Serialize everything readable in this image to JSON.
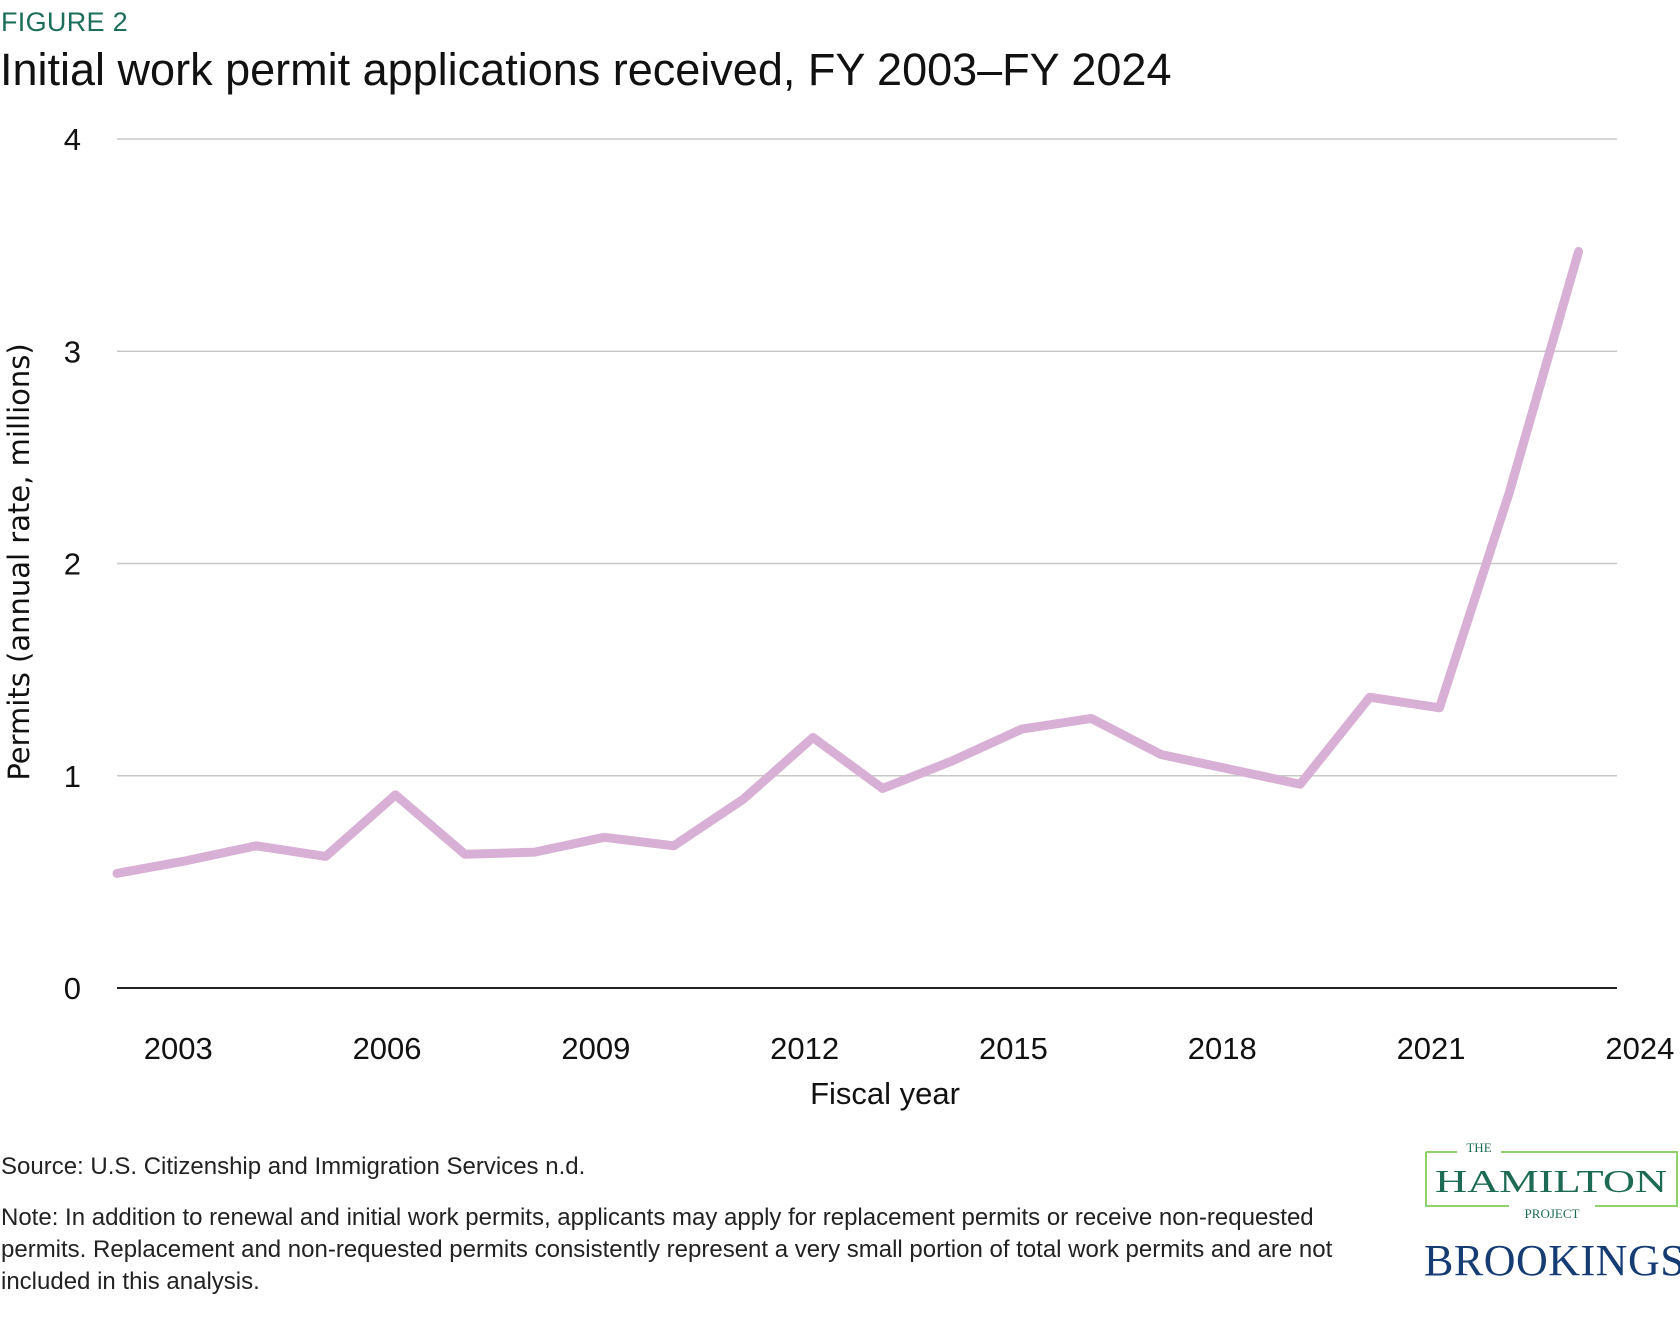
{
  "figure_label": "FIGURE 2",
  "title": "Initial work permit applications received, FY 2003–FY 2024",
  "source": "Source: U.S. Citizenship and Immigration Services n.d.",
  "note": "Note: In addition to renewal and initial work permits, applicants may apply for replacement permits or receive non-requested permits. Replacement and non-requested permits consistently represent a very small portion of total work permits and are not included in this analysis.",
  "logos": {
    "hamilton_the": "THE",
    "hamilton_name": "HAMILTON",
    "hamilton_project": "PROJECT",
    "brookings": "BROOKINGS"
  },
  "chart_data": {
    "type": "line",
    "title": "Initial work permit applications received, FY 2003–FY 2024",
    "xlabel": "Fiscal year",
    "ylabel": "Permits (annual rate, millions)",
    "ylim": [
      0,
      4
    ],
    "yticks": [
      "0",
      "1",
      "2",
      "3",
      "4"
    ],
    "xticks": [
      "2003",
      "2006",
      "2009",
      "2012",
      "2015",
      "2018",
      "2021",
      "2024"
    ],
    "grid": true,
    "line_color": "#d9b0d5",
    "x": [
      2003,
      2004,
      2005,
      2006,
      2007,
      2008,
      2009,
      2010,
      2011,
      2012,
      2013,
      2014,
      2015,
      2016,
      2017,
      2018,
      2019,
      2020,
      2021,
      2022,
      2023,
      2024
    ],
    "values": [
      0.54,
      0.6,
      0.67,
      0.62,
      0.91,
      0.63,
      0.64,
      0.71,
      0.67,
      0.89,
      1.18,
      0.94,
      1.07,
      1.22,
      1.27,
      1.1,
      1.03,
      0.96,
      1.37,
      1.32,
      2.33,
      3.47
    ]
  }
}
